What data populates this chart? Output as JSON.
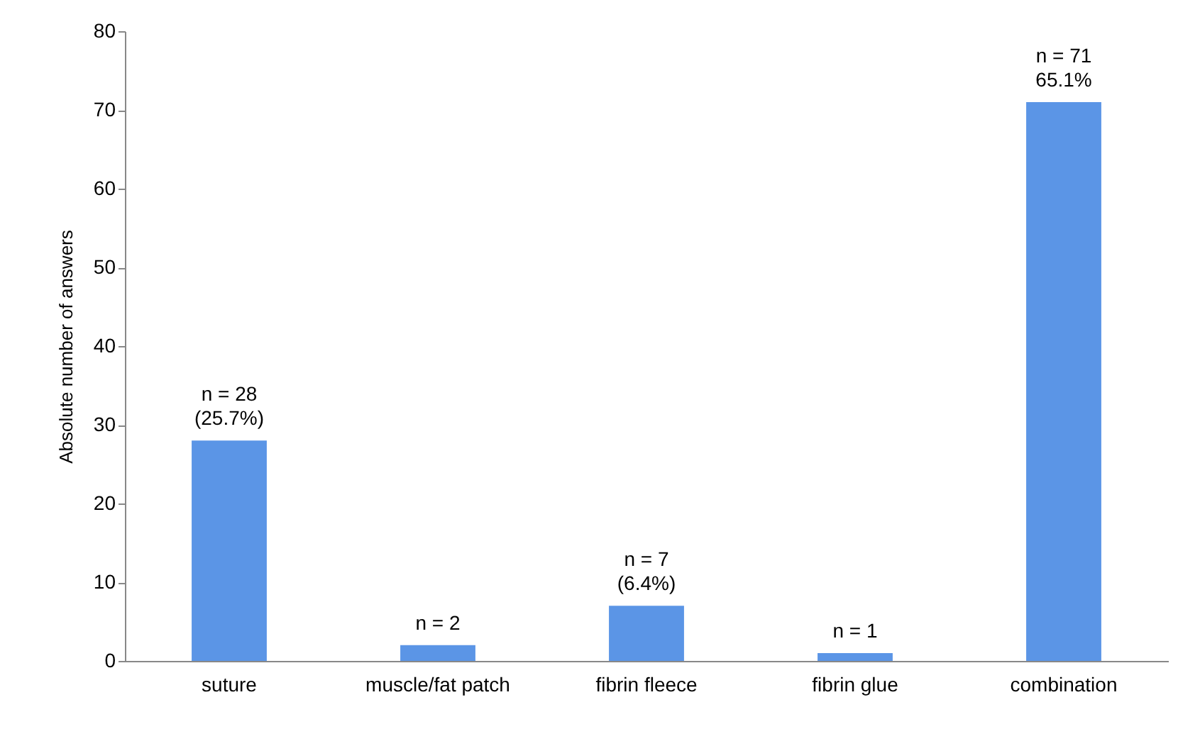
{
  "chart_data": {
    "type": "bar",
    "ylabel": "Absolute number of answers",
    "categories": [
      "suture",
      "muscle/fat patch",
      "fibrin fleece",
      "fibrin glue",
      "combination"
    ],
    "values": [
      28,
      2,
      7,
      1,
      71
    ],
    "value_labels": [
      "n = 28\n(25.7%)",
      "n = 2",
      "n = 7\n(6.4%)",
      "n = 1",
      "n = 71\n65.1%"
    ],
    "color": "#5b95e6",
    "ylim": [
      0,
      80
    ],
    "yticks": [
      0,
      10,
      20,
      30,
      40,
      50,
      60,
      70,
      80
    ],
    "grid": false
  }
}
